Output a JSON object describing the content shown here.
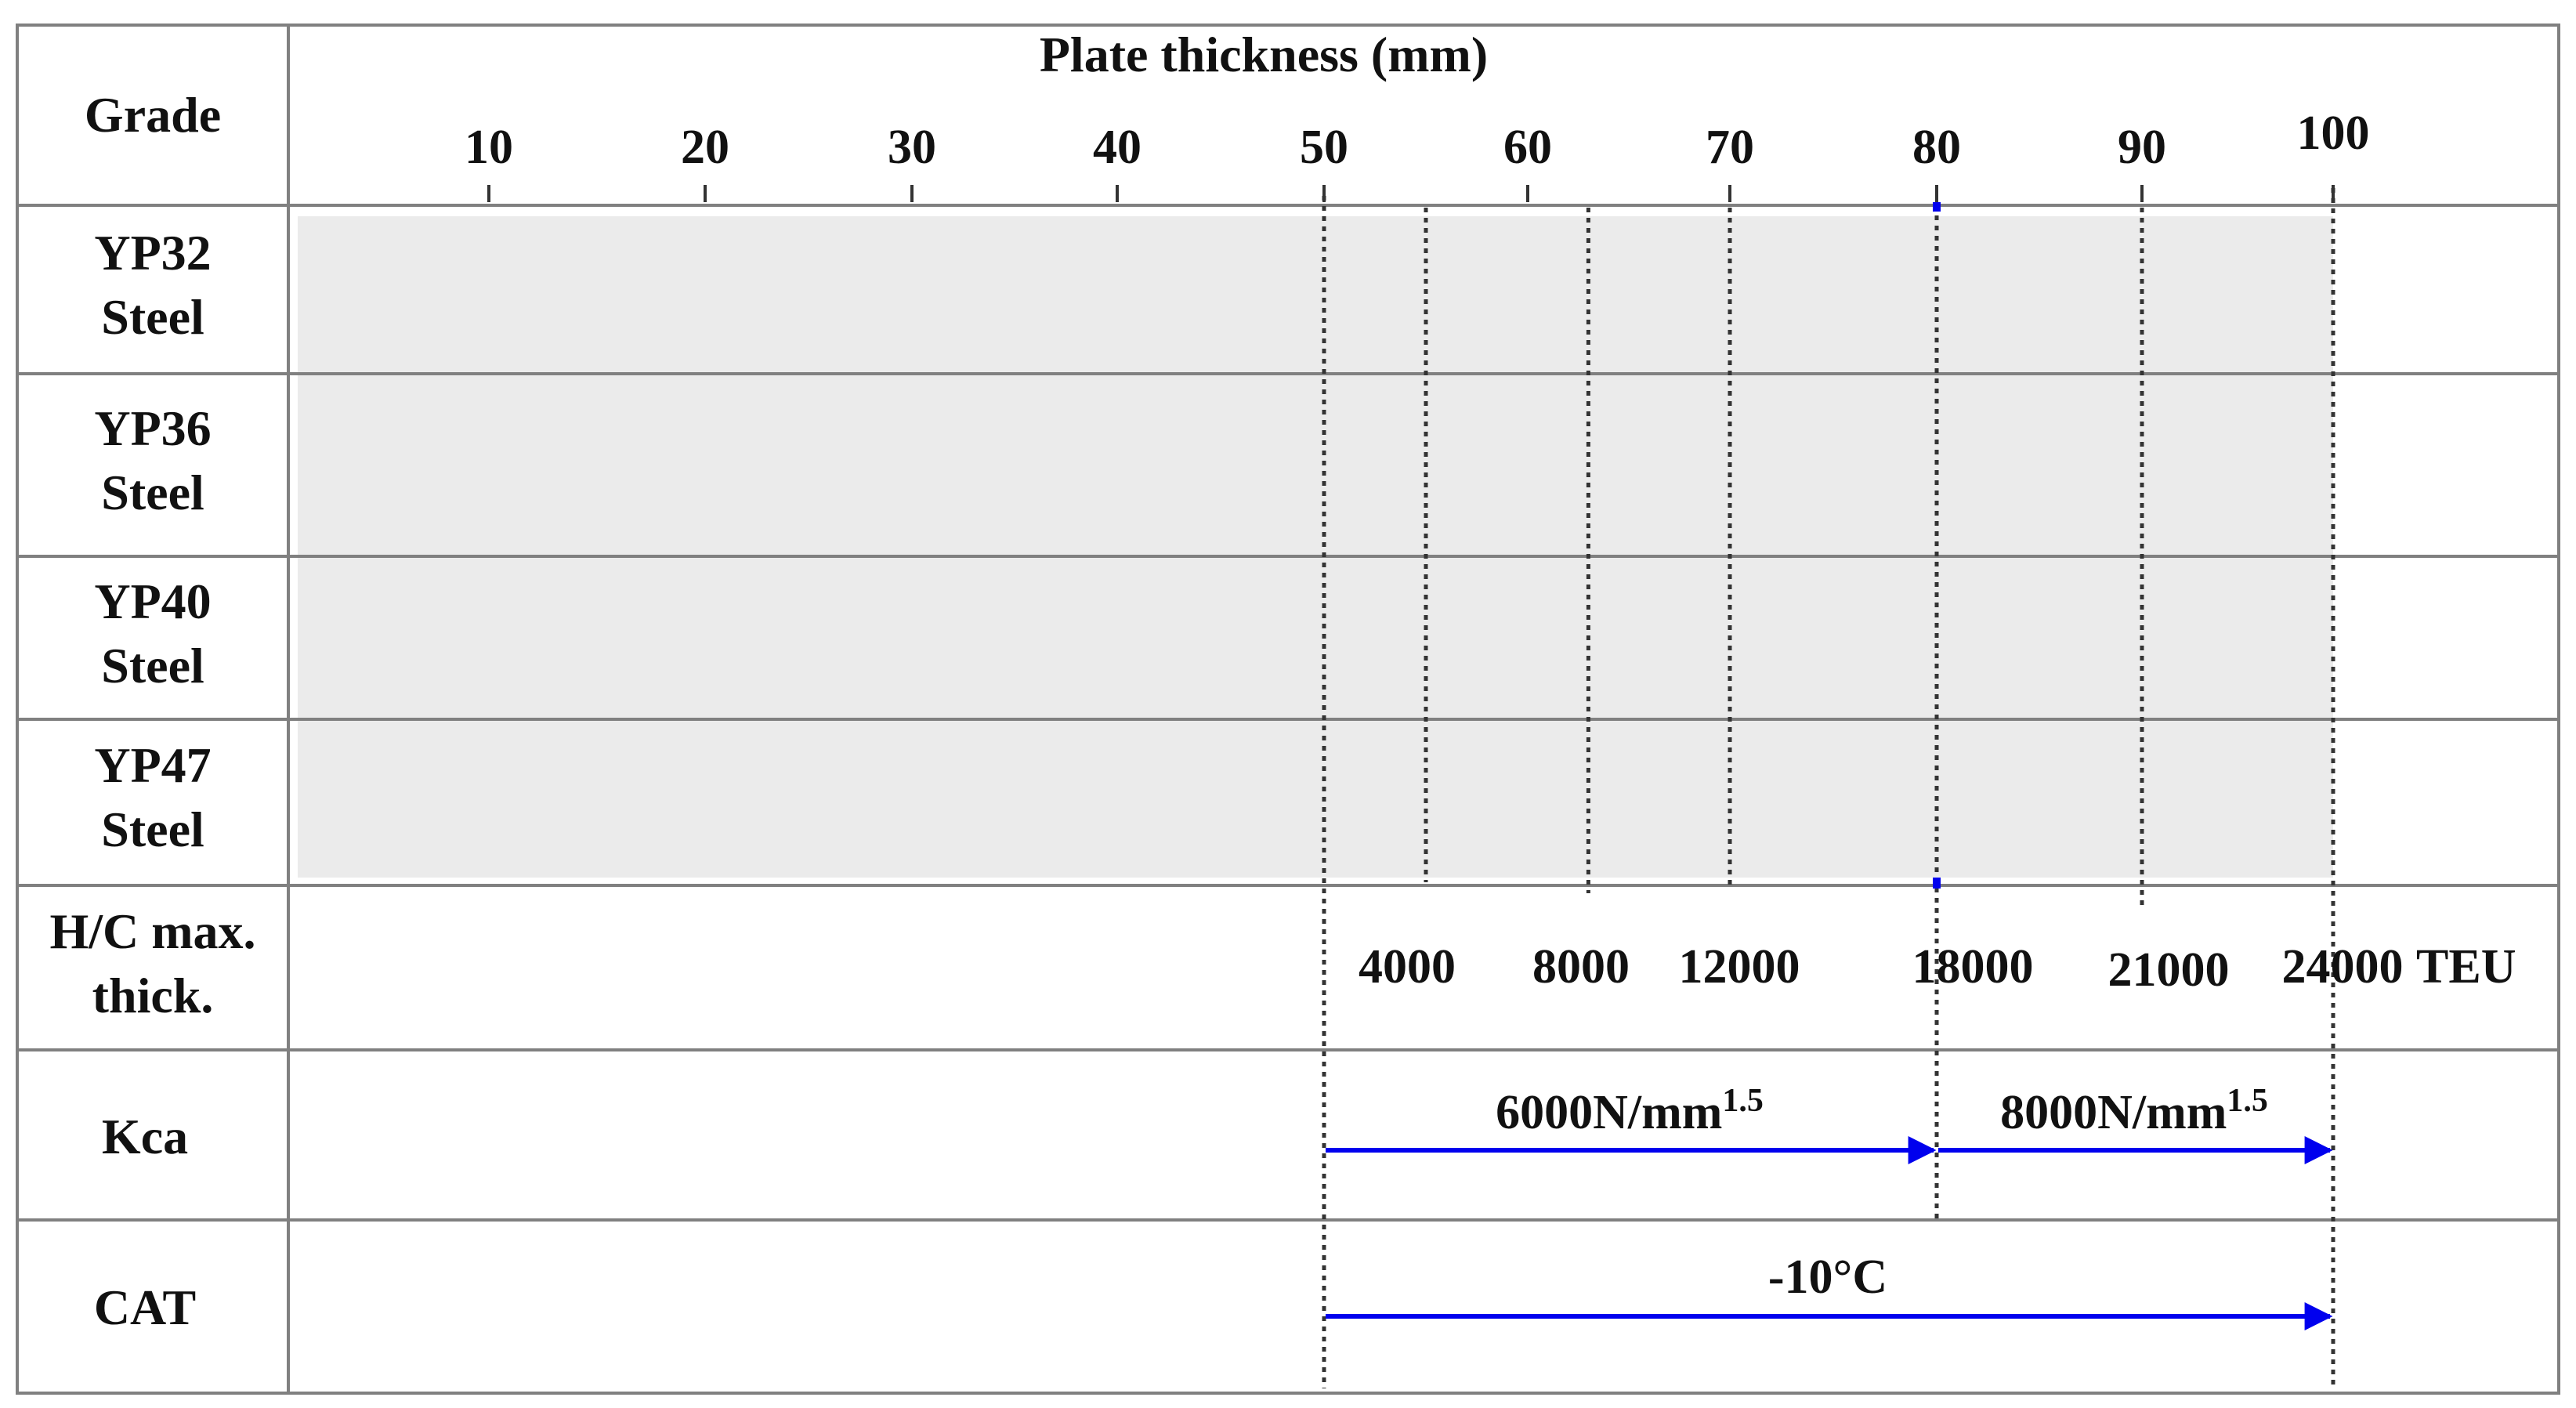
{
  "header": {
    "grade_label": "Grade",
    "title": "Plate thickness (mm)",
    "ticks": [
      "10",
      "20",
      "30",
      "40",
      "50",
      "60",
      "70",
      "80",
      "90",
      "100"
    ]
  },
  "rows": [
    {
      "line1": "YP32",
      "line2": "Steel"
    },
    {
      "line1": "YP36",
      "line2": "Steel"
    },
    {
      "line1": "YP40",
      "line2": "Steel"
    },
    {
      "line1": "YP47",
      "line2": "Steel"
    },
    {
      "line1": "H/C max.",
      "line2": "thick."
    },
    {
      "line1": "Kca",
      "line2": ""
    },
    {
      "line1": "CAT",
      "line2": ""
    }
  ],
  "hc_max_thickness": {
    "unit": "TEU",
    "markers": [
      {
        "teu": "4000",
        "thickness_mm": 55
      },
      {
        "teu": "8000",
        "thickness_mm": 63
      },
      {
        "teu": "12000",
        "thickness_mm": 70
      },
      {
        "teu": "18000",
        "thickness_mm": 80
      },
      {
        "teu": "21000",
        "thickness_mm": 90
      },
      {
        "teu": "24000",
        "thickness_mm": 100
      }
    ]
  },
  "kca": {
    "ranges": [
      {
        "base": "6000N/mm",
        "exp": "1.5",
        "from_mm": 50,
        "to_mm": 80
      },
      {
        "base": "8000N/mm",
        "exp": "1.5",
        "from_mm": 80,
        "to_mm": 100
      }
    ]
  },
  "cat": {
    "ranges": [
      {
        "label": "-10°C",
        "from_mm": 50,
        "to_mm": 100
      }
    ]
  },
  "colors": {
    "shade": "#ebebeb",
    "grid": "#808080",
    "arrow": "#0000ee",
    "dotted": "#333333",
    "text": "#111111"
  }
}
